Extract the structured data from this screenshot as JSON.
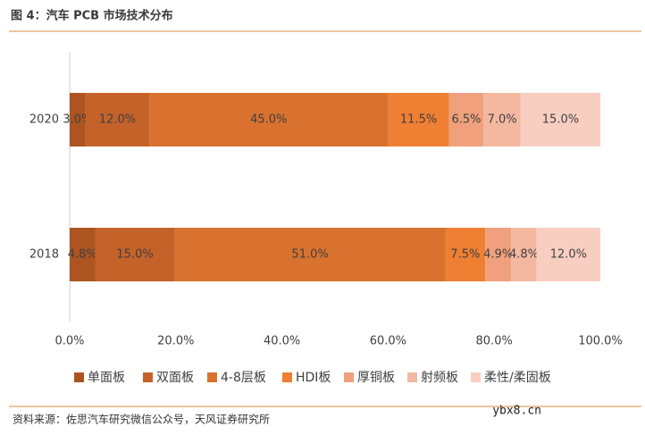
{
  "header": {
    "title": "图 4：汽车 PCB 市场技术分布"
  },
  "chart_data": {
    "type": "stacked-bar-horizontal",
    "categories": [
      "2020",
      "2018"
    ],
    "series": [
      {
        "name": "单面板",
        "color": "#ad5420",
        "values": [
          3.0,
          4.8
        ],
        "value_labels": [
          "3.0%",
          "4.8%"
        ]
      },
      {
        "name": "双面板",
        "color": "#c4622a",
        "values": [
          12.0,
          15.0
        ],
        "value_labels": [
          "12.0%",
          "15.0%"
        ]
      },
      {
        "name": "4-8层板",
        "color": "#d8722e",
        "values": [
          45.0,
          51.0
        ],
        "value_labels": [
          "45.0%",
          "51.0%"
        ]
      },
      {
        "name": "HDI板",
        "color": "#ef7f33",
        "values": [
          11.5,
          7.5
        ],
        "value_labels": [
          "11.5%",
          "7.5%"
        ]
      },
      {
        "name": "厚铜板",
        "color": "#f0a07c",
        "values": [
          6.5,
          4.9
        ],
        "value_labels": [
          "6.5%",
          "4.9%"
        ]
      },
      {
        "name": "射频板",
        "color": "#f4b8a1",
        "values": [
          7.0,
          4.8
        ],
        "value_labels": [
          "7.0%",
          "4.8%"
        ]
      },
      {
        "name": "柔性/柔固板",
        "color": "#f8cec1",
        "values": [
          15.0,
          12.0
        ],
        "value_labels": [
          "15.0%",
          "12.0%"
        ]
      }
    ],
    "xlim": [
      0,
      100
    ],
    "xticks": [
      {
        "value": 0,
        "label": "0.0%"
      },
      {
        "value": 20,
        "label": "20.0%"
      },
      {
        "value": 40,
        "label": "40.0%"
      },
      {
        "value": 60,
        "label": "60.0%"
      },
      {
        "value": 80,
        "label": "80.0%"
      },
      {
        "value": 100,
        "label": "100.0%"
      }
    ],
    "legend": "bottom"
  },
  "footer": {
    "source": "资料来源：佐思汽车研究微信公众号，天风证券研究所",
    "watermark": "ybx8.cn"
  }
}
